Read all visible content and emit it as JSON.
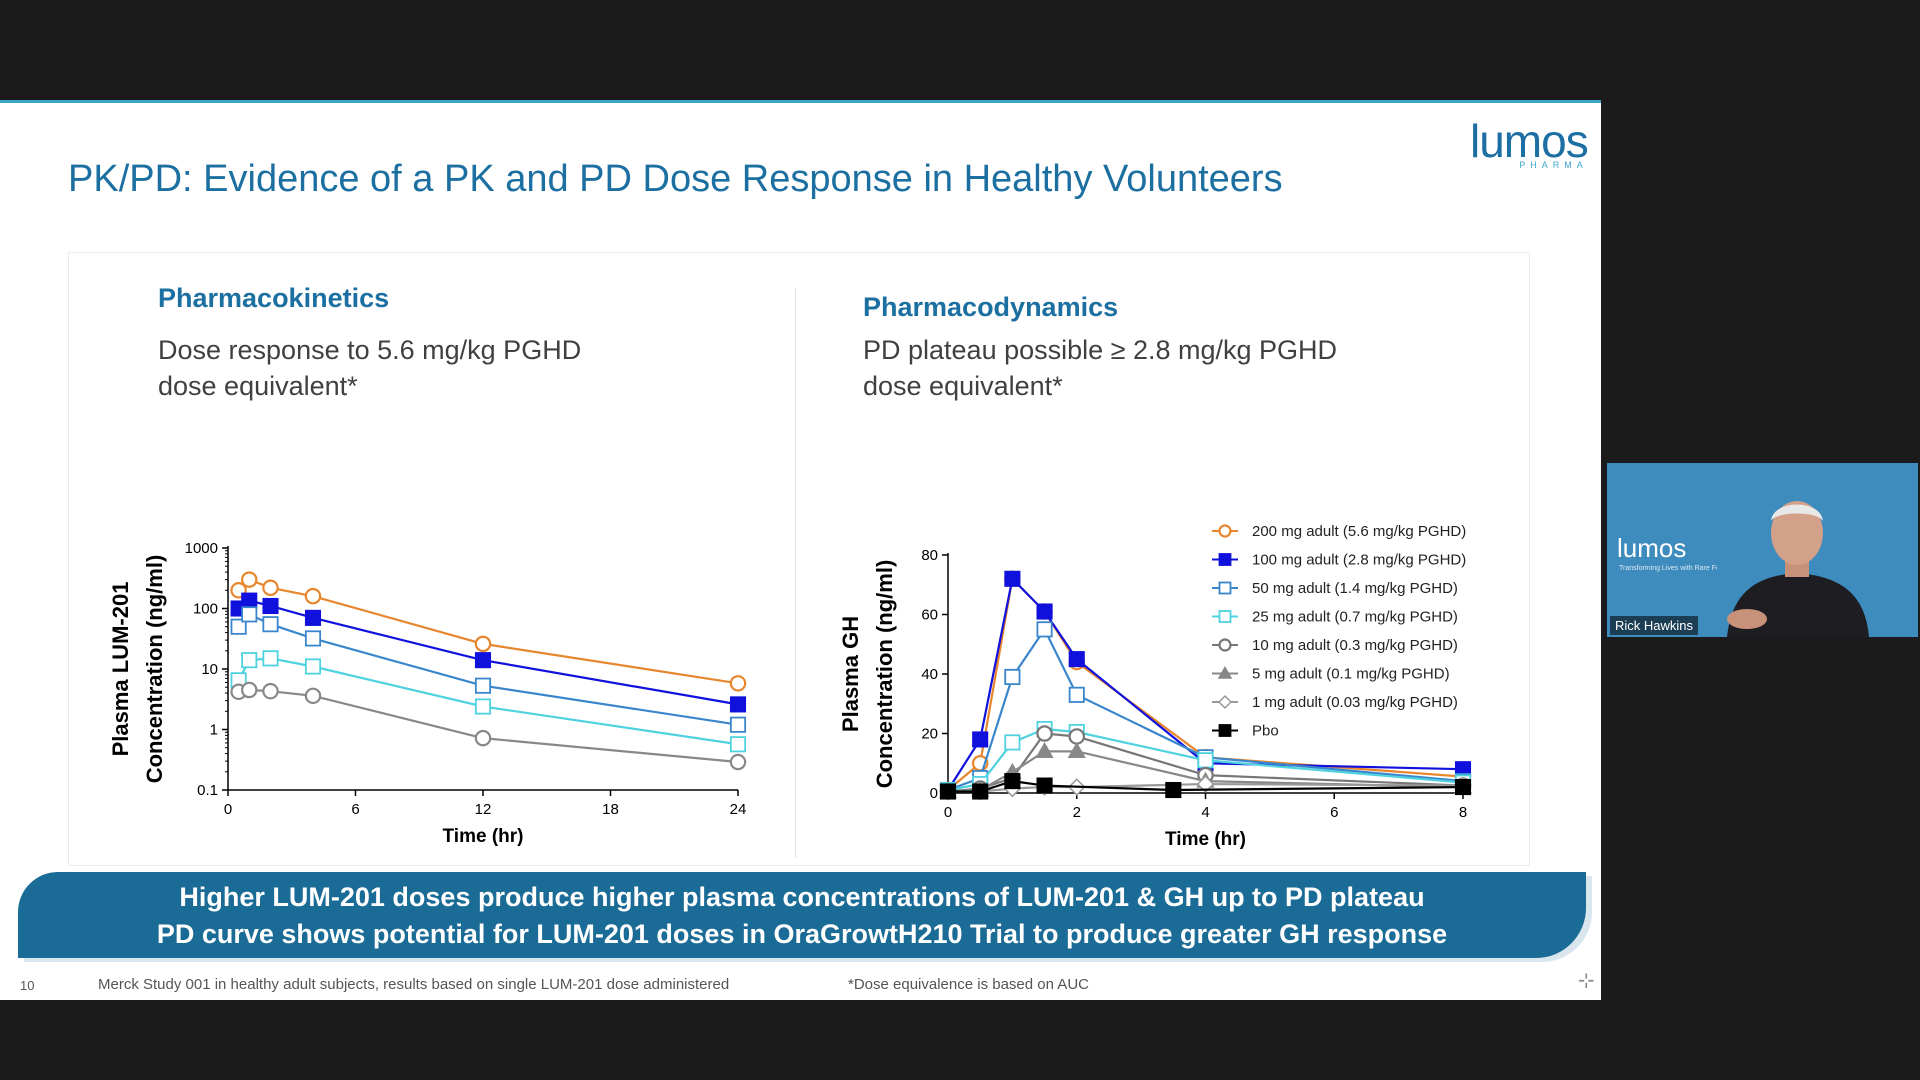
{
  "slide": {
    "title": "PK/PD: Evidence of a PK and PD Dose Response in Healthy Volunteers",
    "logo": {
      "word": "lumos",
      "sub": "PHARMA"
    },
    "page_number": "10",
    "banner": {
      "line1": "Higher LUM-201 doses produce higher plasma concentrations of LUM-201 & GH up to PD plateau",
      "line2": "PD curve shows potential for LUM-201 doses in OraGrowtH210 Trial to produce greater GH response"
    },
    "footnote_left": "Merck Study 001 in healthy adult subjects, results based on single LUM-201 dose administered",
    "footnote_right": "*Dose equivalence is based on AUC"
  },
  "pk": {
    "heading": "Pharmacokinetics",
    "subtitle_line1": "Dose response to 5.6 mg/kg PGHD",
    "subtitle_line2": "dose equivalent*"
  },
  "pd": {
    "heading": "Pharmacodynamics",
    "subtitle_line1": "PD plateau possible ≥ 2.8 mg/kg PGHD",
    "subtitle_line2": "dose equivalent*"
  },
  "video": {
    "name": "Rick Hawkins",
    "logo": "lumos",
    "tagline": "Transforming Lives with Rare Focus"
  },
  "colors": {
    "orange": "#e8862e",
    "blue": "#1111dd",
    "midblue": "#3a86cc",
    "cyan": "#4fd2e0",
    "gray": "#888888",
    "darkgray": "#777777",
    "black": "#000000",
    "brand": "#1c6fa1"
  },
  "chart_data": [
    {
      "type": "line",
      "title": "Pharmacokinetics",
      "xlabel": "Time (hr)",
      "ylabel": "Plasma LUM-201 Concentration (ng/ml)",
      "yscale": "log",
      "ylim": [
        0.1,
        1000
      ],
      "xlim": [
        0,
        24
      ],
      "xticks": [
        0,
        6,
        12,
        18,
        24
      ],
      "yticks": [
        0.1,
        1,
        10,
        100,
        1000
      ],
      "ytick_labels": [
        "0.1",
        "1",
        "10",
        "100",
        "1000"
      ],
      "series": [
        {
          "name": "200 mg",
          "color": "#e8862e",
          "marker": "circle-open",
          "x": [
            0.5,
            1,
            2,
            4,
            12,
            24
          ],
          "y": [
            200,
            300,
            220,
            160,
            26,
            5.8
          ]
        },
        {
          "name": "100 mg",
          "color": "#1111dd",
          "marker": "square-filled",
          "x": [
            0.5,
            1,
            2,
            4,
            12,
            24
          ],
          "y": [
            100,
            135,
            110,
            70,
            14,
            2.6
          ]
        },
        {
          "name": "50 mg",
          "color": "#3a86cc",
          "marker": "square-open",
          "x": [
            0.5,
            1,
            2,
            4,
            12,
            24
          ],
          "y": [
            50,
            80,
            55,
            32,
            5.3,
            1.2
          ]
        },
        {
          "name": "25 mg",
          "color": "#4fd2e0",
          "marker": "square-open",
          "x": [
            0.5,
            1,
            2,
            4,
            12,
            24
          ],
          "y": [
            6.5,
            14,
            15,
            11,
            2.4,
            0.57
          ]
        },
        {
          "name": "10 mg",
          "color": "#888888",
          "marker": "circle-open",
          "x": [
            0.5,
            1,
            2,
            4,
            12,
            24
          ],
          "y": [
            4.2,
            4.5,
            4.3,
            3.6,
            0.72,
            0.29
          ]
        }
      ]
    },
    {
      "type": "line",
      "title": "Pharmacodynamics",
      "xlabel": "Time (hr)",
      "ylabel": "Plasma GH Concentration (ng/ml)",
      "ylim": [
        0,
        80
      ],
      "xlim": [
        0,
        8
      ],
      "xticks": [
        0,
        2,
        4,
        6,
        8
      ],
      "yticks": [
        0,
        20,
        40,
        60,
        80
      ],
      "legend": "top-right",
      "series": [
        {
          "name": "200 mg adult (5.6 mg/kg PGHD)",
          "color": "#e8862e",
          "marker": "circle-open",
          "x": [
            0,
            0.5,
            1,
            1.5,
            2,
            4,
            8
          ],
          "y": [
            1,
            10,
            72,
            61,
            44,
            12,
            5.5
          ]
        },
        {
          "name": "100 mg adult (2.8 mg/kg PGHD)",
          "color": "#1111dd",
          "marker": "square-filled",
          "x": [
            0,
            0.5,
            1,
            1.5,
            2,
            4,
            8
          ],
          "y": [
            1,
            18,
            72,
            61,
            45,
            10,
            8
          ]
        },
        {
          "name": "50 mg adult (1.4 mg/kg PGHD)",
          "color": "#3a86cc",
          "marker": "square-open",
          "x": [
            0,
            0.5,
            1,
            1.5,
            2,
            4,
            8
          ],
          "y": [
            1,
            5,
            39,
            55,
            33,
            12,
            4
          ]
        },
        {
          "name": "25 mg adult (0.7 mg/kg PGHD)",
          "color": "#4fd2e0",
          "marker": "square-open",
          "x": [
            0,
            0.5,
            1,
            1.5,
            2,
            4,
            8
          ],
          "y": [
            1,
            3,
            17,
            21.5,
            20.5,
            11,
            3.5
          ]
        },
        {
          "name": "10 mg adult (0.3 mg/kg PGHD)",
          "color": "#777777",
          "marker": "circle-open",
          "x": [
            0,
            0.5,
            1,
            1.5,
            2,
            4,
            8
          ],
          "y": [
            0.5,
            1.5,
            5,
            20,
            19,
            6,
            2.5
          ]
        },
        {
          "name": "5 mg adult (0.1 mg/kg PGHD)",
          "color": "#888888",
          "marker": "triangle-filled",
          "x": [
            0,
            0.5,
            1,
            1.5,
            2,
            4,
            8
          ],
          "y": [
            0.5,
            1,
            7,
            14,
            14,
            4,
            2
          ]
        },
        {
          "name": "1 mg adult (0.03 mg/kg PGHD)",
          "color": "#999999",
          "marker": "diamond-open",
          "x": [
            0,
            0.5,
            1,
            1.5,
            2,
            4,
            8
          ],
          "y": [
            0.5,
            0.5,
            1.5,
            2,
            2,
            3,
            2.5
          ]
        },
        {
          "name": "Pbo",
          "color": "#000000",
          "marker": "square-filled",
          "x": [
            0,
            0.5,
            1,
            1.5,
            3.5,
            8
          ],
          "y": [
            0.5,
            0.5,
            4,
            2.5,
            1,
            2
          ]
        }
      ]
    }
  ]
}
